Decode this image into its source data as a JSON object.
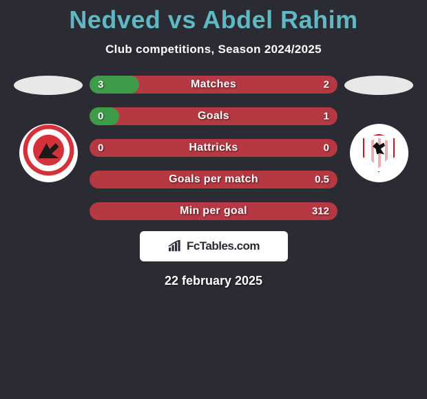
{
  "title": "Nedved vs Abdel Rahim",
  "title_color": "#5fb8c4",
  "subtitle": "Club competitions, Season 2024/2025",
  "background_color": "#2a2b33",
  "text_color": "#ffffff",
  "date": "22 february 2025",
  "logo_text": "FcTables.com",
  "left_side": {
    "ellipse_color": "#e8e8e8",
    "badge_name": "al-ahly-badge",
    "badge_primary": "#d4323a",
    "badge_bg": "#ffffff"
  },
  "right_side": {
    "ellipse_color": "#e8e8e8",
    "badge_name": "zamalek-badge",
    "badge_primary": "#c01820",
    "badge_bg": "#ffffff"
  },
  "bars": {
    "left_color": "#3e9b4a",
    "right_color": "#b53842",
    "height": 26,
    "radius": 13,
    "label_fontsize": 16,
    "value_fontsize": 15,
    "rows": [
      {
        "label": "Matches",
        "left": "3",
        "right": "2",
        "left_pct": 20
      },
      {
        "label": "Goals",
        "left": "0",
        "right": "1",
        "left_pct": 12
      },
      {
        "label": "Hattricks",
        "left": "0",
        "right": "0",
        "left_pct": 0
      },
      {
        "label": "Goals per match",
        "left": "",
        "right": "0.5",
        "left_pct": 0
      },
      {
        "label": "Min per goal",
        "left": "",
        "right": "312",
        "left_pct": 0
      }
    ]
  }
}
